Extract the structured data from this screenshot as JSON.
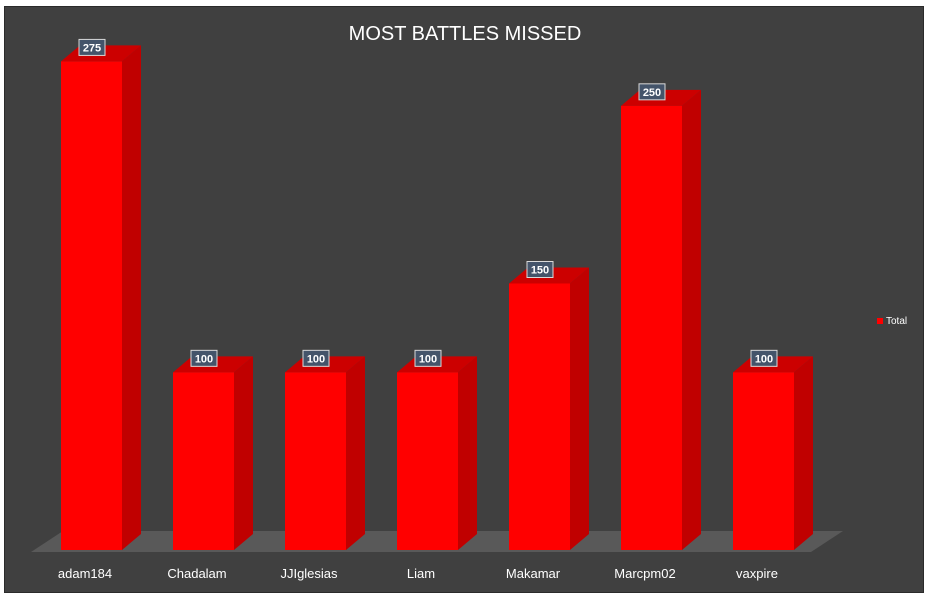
{
  "chart_data": {
    "type": "bar",
    "title": "MOST BATTLES MISSED",
    "categories": [
      "adam184",
      "Chadalam",
      "JJIglesias",
      "Liam",
      "Makamar",
      "Marcpm02",
      "vaxpire"
    ],
    "series": [
      {
        "name": "Total",
        "values": [
          275,
          100,
          100,
          100,
          150,
          250,
          100
        ]
      }
    ],
    "data_labels": [
      "275",
      "100",
      "100",
      "100",
      "150",
      "250",
      "100"
    ],
    "ylim": [
      0,
      300
    ],
    "grid": false,
    "legend_position": "right",
    "style": "3d-column",
    "colors": {
      "bar_front": "#ff0000",
      "bar_side": "#c00000",
      "bar_top": "#cc0000",
      "background": "#404040",
      "floor": "#595959",
      "label_box": "#44546a"
    }
  }
}
